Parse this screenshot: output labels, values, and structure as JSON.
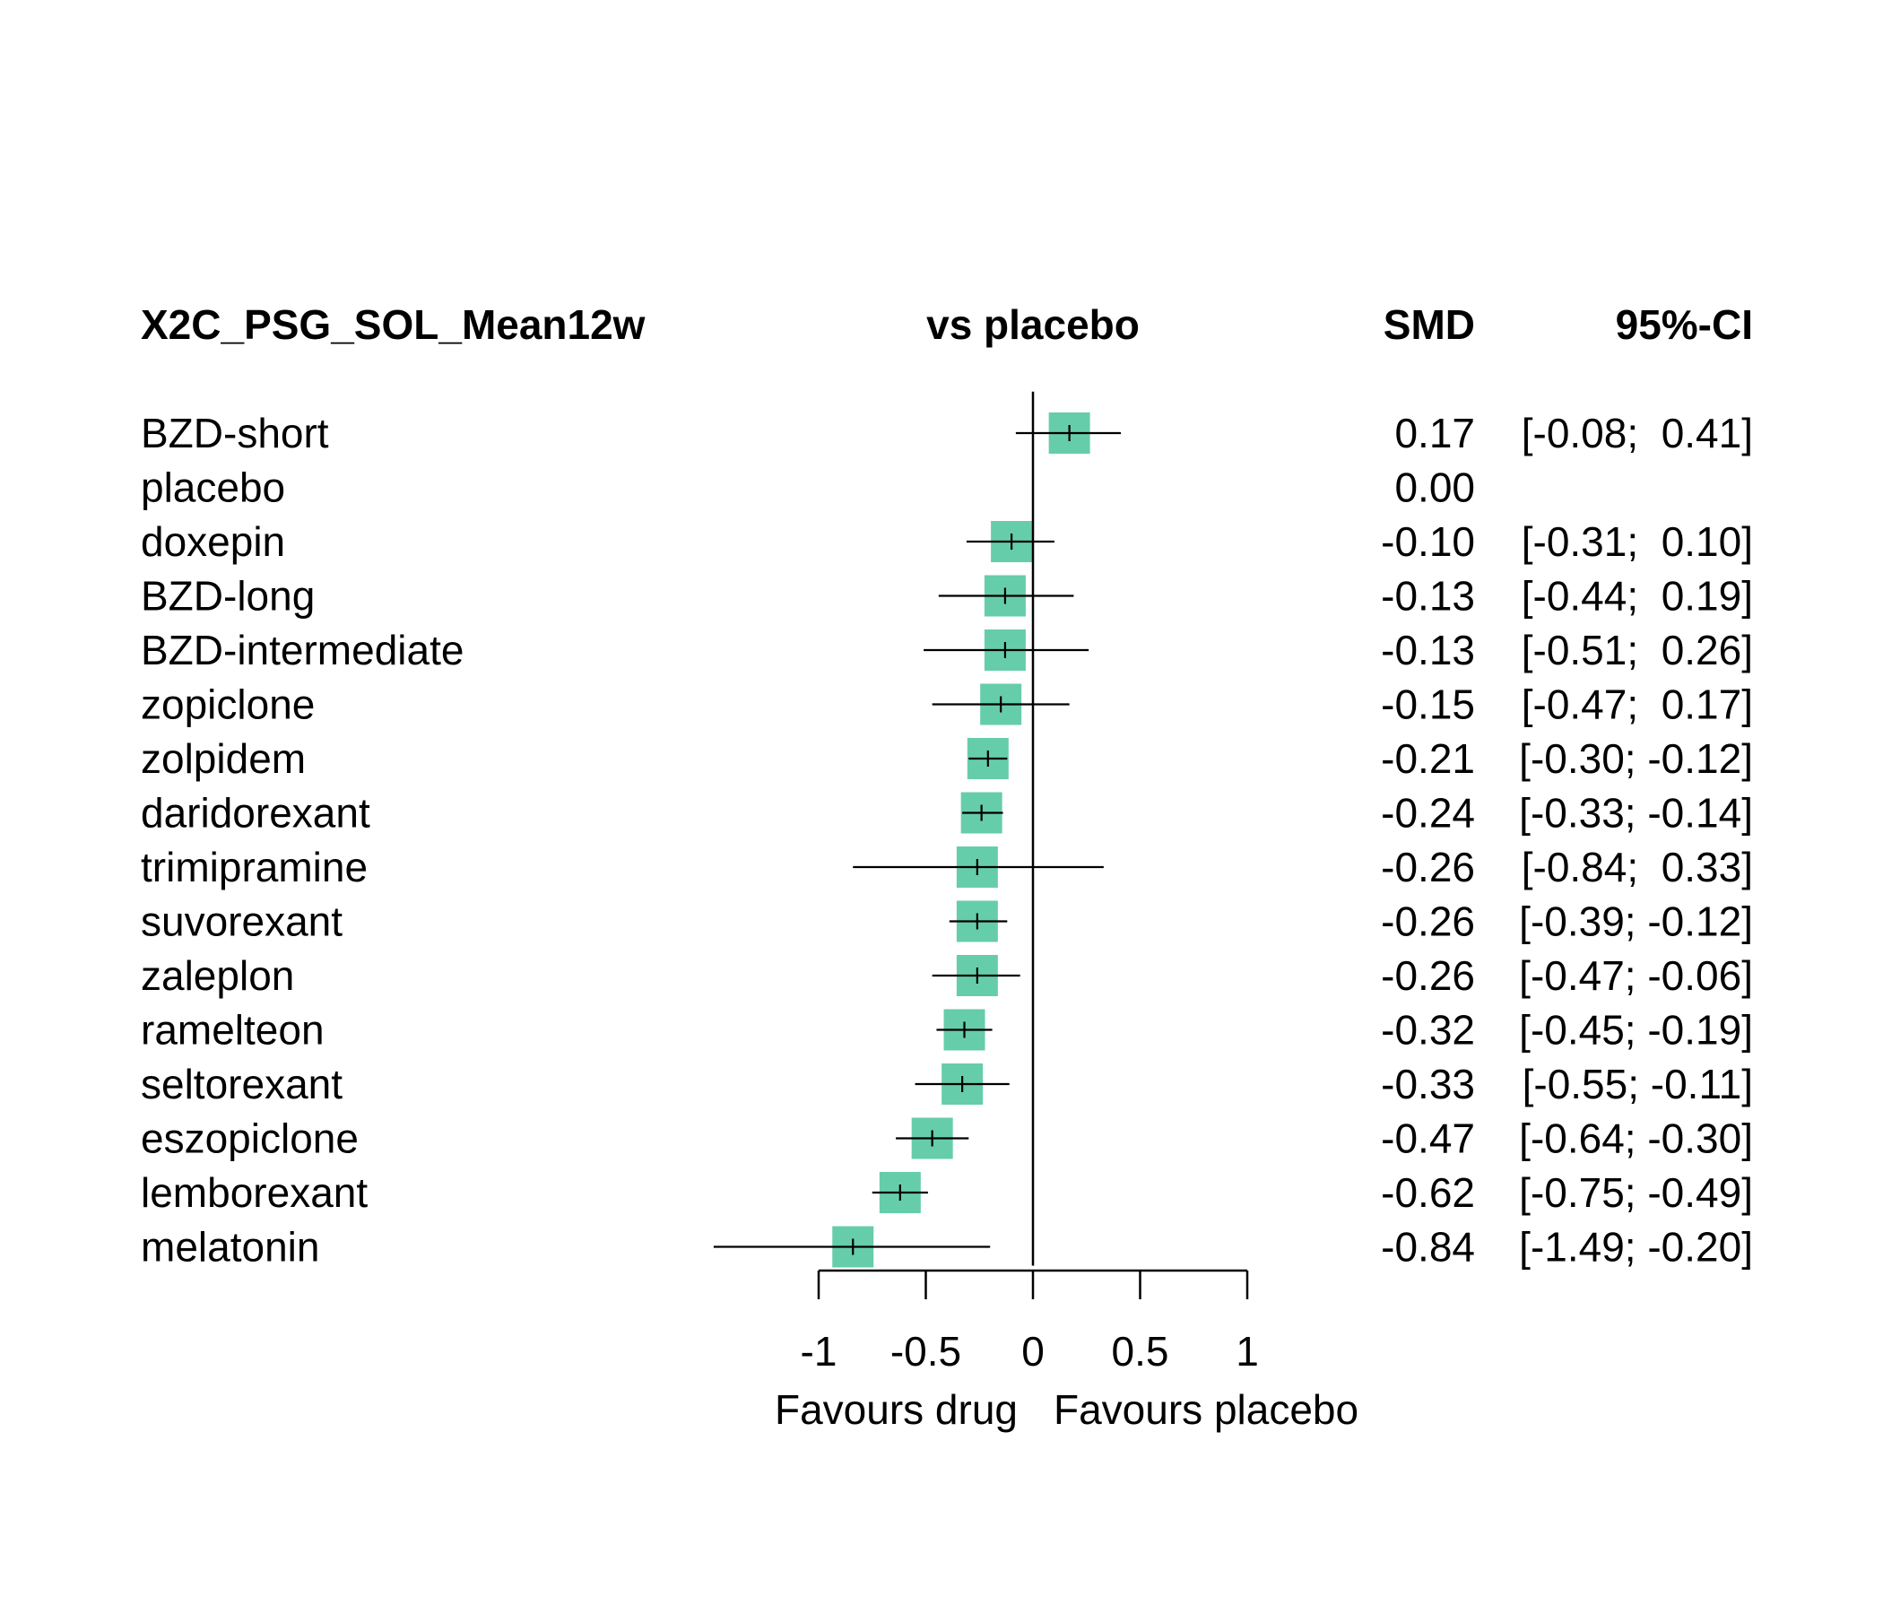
{
  "chart_data": {
    "type": "forest",
    "header": {
      "outcome": "X2C_PSG_SOL_Mean12w",
      "comparison": "vs placebo",
      "effect_col": "SMD",
      "ci_col": "95%-CI"
    },
    "xlim": [
      -1,
      1
    ],
    "ticks": [
      -1,
      -0.5,
      0,
      0.5,
      1
    ],
    "tick_labels": [
      "-1",
      "-0.5",
      "0",
      "0.5",
      "1"
    ],
    "xlabel_left": "Favours drug",
    "xlabel_right": "Favours placebo",
    "box_color": "#66cdaa",
    "rows": [
      {
        "label": "BZD-short",
        "smd": 0.17,
        "lower": -0.08,
        "upper": 0.41,
        "smd_text": "0.17",
        "ci_text": "[-0.08;  0.41]"
      },
      {
        "label": "placebo",
        "smd": 0.0,
        "lower": null,
        "upper": null,
        "smd_text": "0.00",
        "ci_text": ""
      },
      {
        "label": "doxepin",
        "smd": -0.1,
        "lower": -0.31,
        "upper": 0.1,
        "smd_text": "-0.10",
        "ci_text": "[-0.31;  0.10]"
      },
      {
        "label": "BZD-long",
        "smd": -0.13,
        "lower": -0.44,
        "upper": 0.19,
        "smd_text": "-0.13",
        "ci_text": "[-0.44;  0.19]"
      },
      {
        "label": "BZD-intermediate",
        "smd": -0.13,
        "lower": -0.51,
        "upper": 0.26,
        "smd_text": "-0.13",
        "ci_text": "[-0.51;  0.26]"
      },
      {
        "label": "zopiclone",
        "smd": -0.15,
        "lower": -0.47,
        "upper": 0.17,
        "smd_text": "-0.15",
        "ci_text": "[-0.47;  0.17]"
      },
      {
        "label": "zolpidem",
        "smd": -0.21,
        "lower": -0.3,
        "upper": -0.12,
        "smd_text": "-0.21",
        "ci_text": "[-0.30; -0.12]"
      },
      {
        "label": "daridorexant",
        "smd": -0.24,
        "lower": -0.33,
        "upper": -0.14,
        "smd_text": "-0.24",
        "ci_text": "[-0.33; -0.14]"
      },
      {
        "label": "trimipramine",
        "smd": -0.26,
        "lower": -0.84,
        "upper": 0.33,
        "smd_text": "-0.26",
        "ci_text": "[-0.84;  0.33]"
      },
      {
        "label": "suvorexant",
        "smd": -0.26,
        "lower": -0.39,
        "upper": -0.12,
        "smd_text": "-0.26",
        "ci_text": "[-0.39; -0.12]"
      },
      {
        "label": "zaleplon",
        "smd": -0.26,
        "lower": -0.47,
        "upper": -0.06,
        "smd_text": "-0.26",
        "ci_text": "[-0.47; -0.06]"
      },
      {
        "label": "ramelteon",
        "smd": -0.32,
        "lower": -0.45,
        "upper": -0.19,
        "smd_text": "-0.32",
        "ci_text": "[-0.45; -0.19]"
      },
      {
        "label": "seltorexant",
        "smd": -0.33,
        "lower": -0.55,
        "upper": -0.11,
        "smd_text": "-0.33",
        "ci_text": "[-0.55; -0.11]"
      },
      {
        "label": "eszopiclone",
        "smd": -0.47,
        "lower": -0.64,
        "upper": -0.3,
        "smd_text": "-0.47",
        "ci_text": "[-0.64; -0.30]"
      },
      {
        "label": "lemborexant",
        "smd": -0.62,
        "lower": -0.75,
        "upper": -0.49,
        "smd_text": "-0.62",
        "ci_text": "[-0.75; -0.49]"
      },
      {
        "label": "melatonin",
        "smd": -0.84,
        "lower": -1.49,
        "upper": -0.2,
        "smd_text": "-0.84",
        "ci_text": "[-1.49; -0.20]"
      }
    ]
  }
}
